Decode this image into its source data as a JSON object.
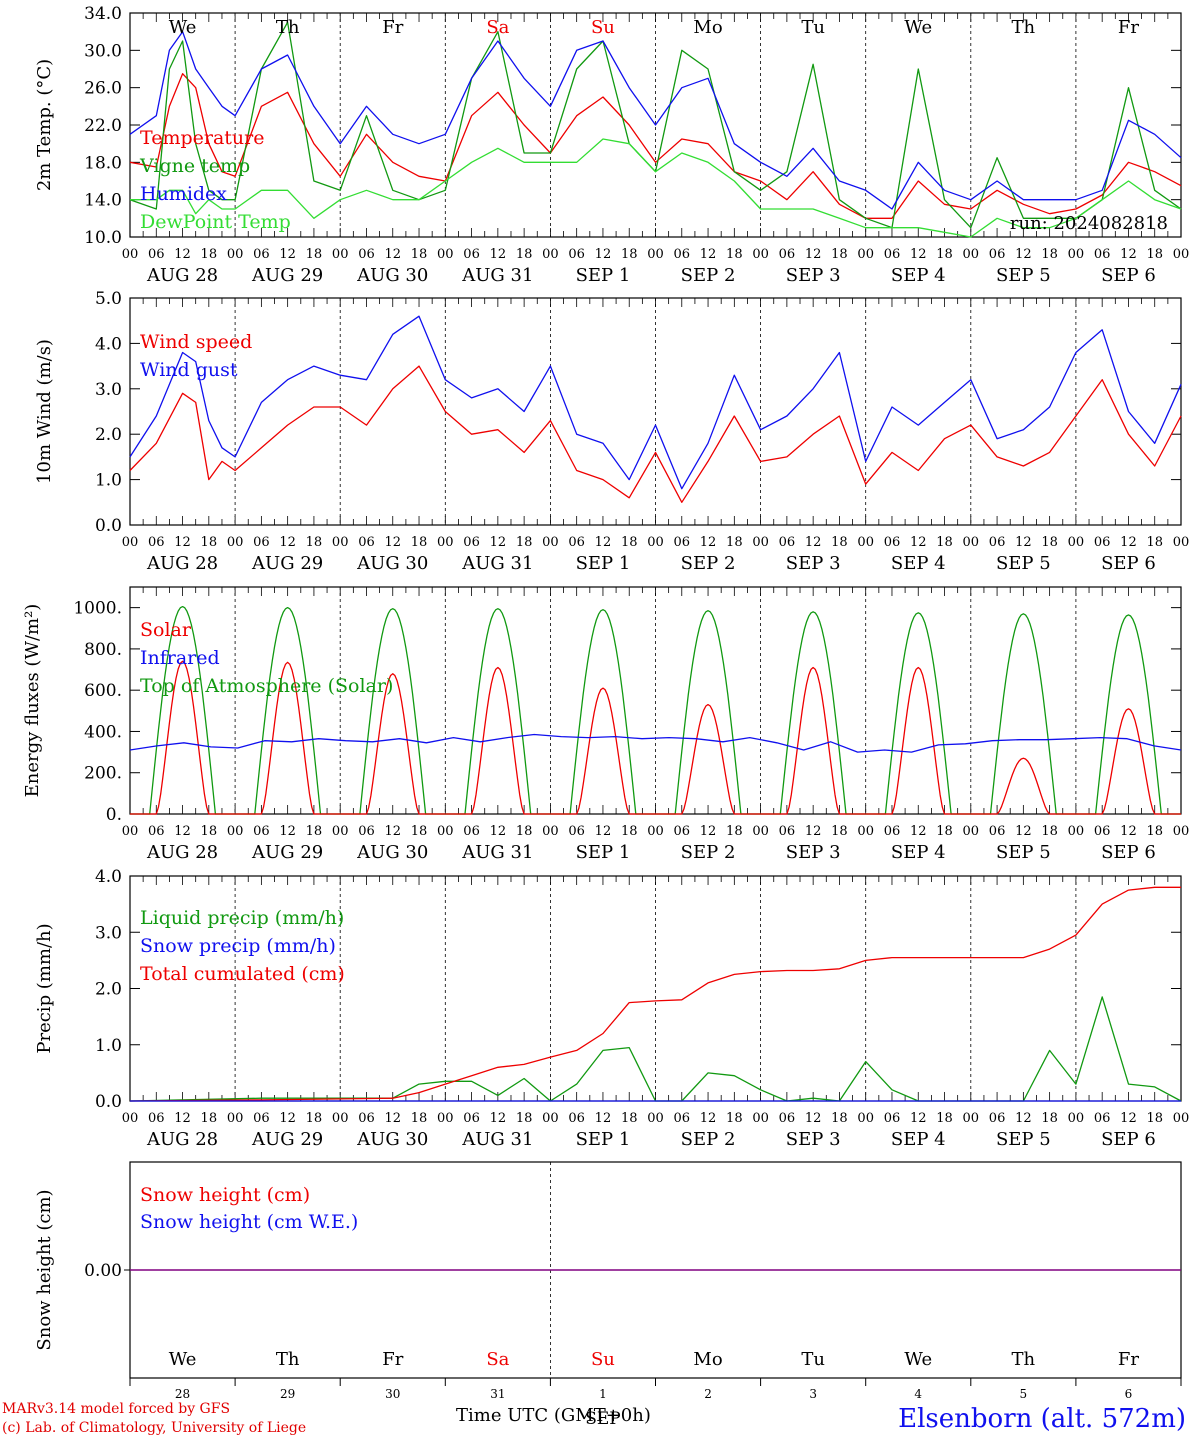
{
  "days": [
    {
      "dow": "We",
      "dom": "28",
      "date": "AUG 28",
      "weekend": false
    },
    {
      "dow": "Th",
      "dom": "29",
      "date": "AUG 29",
      "weekend": false
    },
    {
      "dow": "Fr",
      "dom": "30",
      "date": "AUG 30",
      "weekend": false
    },
    {
      "dow": "Sa",
      "dom": "31",
      "date": "AUG 31",
      "weekend": true
    },
    {
      "dow": "Su",
      "dom": "1",
      "date": "SEP  1",
      "weekend": true
    },
    {
      "dow": "Mo",
      "dom": "2",
      "date": "SEP  2",
      "weekend": false
    },
    {
      "dow": "Tu",
      "dom": "3",
      "date": "SEP  3",
      "weekend": false
    },
    {
      "dow": "We",
      "dom": "4",
      "date": "SEP  4",
      "weekend": false
    },
    {
      "dow": "Th",
      "dom": "5",
      "date": "SEP  5",
      "weekend": false
    },
    {
      "dow": "Fr",
      "dom": "6",
      "date": "SEP  6",
      "weekend": false
    }
  ],
  "hour_ticks": [
    "00",
    "06",
    "12",
    "18"
  ],
  "last_tick": "00",
  "bottom_month": "SEP",
  "footer": {
    "model": "MARv3.14 model forced by GFS",
    "credit": "(c) Lab. of Climatology, University of Liege",
    "station": "Elsenborn (alt. 572m)",
    "xtitle": "Time UTC (GMT+0h)"
  },
  "colors": {
    "red": "#ee0000",
    "green": "#119911",
    "blue": "#1010ee",
    "lightgreen": "#33dd33",
    "purple": "#800080"
  },
  "chart_data": [
    {
      "type": "line",
      "ylabel": "2m Temp. (°C)",
      "ylim": [
        10,
        34
      ],
      "yticks": [
        "10.0",
        "14.0",
        "18.0",
        "22.0",
        "26.0",
        "30.0",
        "34.0"
      ],
      "annotation": "run: 2024082818",
      "x_hours": [
        0,
        6,
        9,
        12,
        15,
        18,
        21,
        24,
        30,
        36,
        42,
        48,
        54,
        60,
        66,
        72,
        78,
        84,
        90,
        96,
        102,
        108,
        114,
        120,
        126,
        132,
        138,
        144,
        150,
        156,
        162,
        168,
        174,
        180,
        186,
        192,
        198,
        204,
        210,
        216,
        222,
        228,
        234,
        240
      ],
      "series": [
        {
          "name": "Temperature",
          "color": "red",
          "values": [
            18,
            17.5,
            24,
            27.5,
            26,
            20,
            17,
            16.5,
            24,
            25.5,
            20,
            16.5,
            21,
            18,
            16.5,
            16,
            23,
            25.5,
            22,
            19,
            23,
            25,
            22,
            18,
            20.5,
            20,
            17,
            16,
            14,
            17,
            13.5,
            12,
            12,
            16,
            13.5,
            13,
            15,
            13.5,
            12.5,
            13,
            14.5,
            18,
            17,
            15.5
          ]
        },
        {
          "name": "Vigne temp",
          "color": "green",
          "values": [
            14,
            13,
            28,
            31,
            20,
            15,
            14,
            14,
            28,
            33,
            16,
            15,
            23,
            15,
            14,
            15,
            27,
            32,
            19,
            19,
            28,
            31,
            20,
            17,
            30,
            28,
            17,
            15,
            17,
            28.5,
            14,
            12,
            11,
            28,
            14,
            11,
            18.5,
            12,
            12,
            12,
            14,
            26,
            15,
            13
          ]
        },
        {
          "name": "Humidex",
          "color": "blue",
          "values": [
            21,
            23,
            30,
            32,
            28,
            26,
            24,
            23,
            28,
            29.5,
            24,
            20,
            24,
            21,
            20,
            21,
            27,
            31,
            27,
            24,
            30,
            31,
            26,
            22,
            26,
            27,
            20,
            18,
            16.5,
            19.5,
            16,
            15,
            13,
            18,
            15,
            14,
            16,
            14,
            14,
            14,
            15,
            22.5,
            21,
            18.5
          ]
        },
        {
          "name": "DewPoint Temp",
          "color": "lightgreen",
          "values": [
            14,
            14,
            15,
            15,
            12.5,
            14,
            13,
            13,
            15,
            15,
            12,
            14,
            15,
            14,
            14,
            16,
            18,
            19.5,
            18,
            18,
            18,
            20.5,
            20,
            17,
            19,
            18,
            16,
            13,
            13,
            13,
            12,
            11,
            11,
            11,
            10.5,
            10,
            12,
            11,
            11,
            12,
            14,
            16,
            14,
            13
          ]
        }
      ]
    },
    {
      "type": "line",
      "ylabel": "10m Wind (m/s)",
      "ylim": [
        0,
        5
      ],
      "yticks": [
        "0.0",
        "1.0",
        "2.0",
        "3.0",
        "4.0",
        "5.0"
      ],
      "x_hours": [
        0,
        6,
        12,
        15,
        18,
        21,
        24,
        30,
        36,
        42,
        48,
        54,
        60,
        66,
        72,
        78,
        84,
        90,
        96,
        102,
        108,
        114,
        120,
        126,
        132,
        138,
        144,
        150,
        156,
        162,
        168,
        174,
        180,
        186,
        192,
        198,
        204,
        210,
        216,
        222,
        228,
        234,
        240
      ],
      "series": [
        {
          "name": "Wind speed",
          "color": "red",
          "values": [
            1.2,
            1.8,
            2.9,
            2.7,
            1,
            1.4,
            1.2,
            1.7,
            2.2,
            2.6,
            2.6,
            2.2,
            3.0,
            3.5,
            2.5,
            2.0,
            2.1,
            1.6,
            2.3,
            1.2,
            1.0,
            0.6,
            1.6,
            0.5,
            1.4,
            2.4,
            1.4,
            1.5,
            2.0,
            2.4,
            0.9,
            1.6,
            1.2,
            1.9,
            2.2,
            1.5,
            1.3,
            1.6,
            2.4,
            3.2,
            2.0,
            1.3,
            2.4
          ]
        },
        {
          "name": "Wind gust",
          "color": "blue",
          "values": [
            1.5,
            2.4,
            3.8,
            3.6,
            2.3,
            1.7,
            1.5,
            2.7,
            3.2,
            3.5,
            3.3,
            3.2,
            4.2,
            4.6,
            3.2,
            2.8,
            3.0,
            2.5,
            3.5,
            2.0,
            1.8,
            1.0,
            2.2,
            0.8,
            1.8,
            3.3,
            2.1,
            2.4,
            3.0,
            3.8,
            1.4,
            2.6,
            2.2,
            2.7,
            3.2,
            1.9,
            2.1,
            2.6,
            3.8,
            4.3,
            2.5,
            1.8,
            3.1
          ]
        }
      ]
    },
    {
      "type": "line",
      "ylabel": "Energy fluxes (W/m²)",
      "ylim": [
        0,
        1100
      ],
      "yticks": [
        "0.",
        "200.",
        "400.",
        "600.",
        "800.",
        "1000."
      ],
      "series": [
        {
          "name": "Solar",
          "color": "red",
          "peaks": [
            740,
            735,
            680,
            710,
            610,
            530,
            710,
            710,
            270,
            510
          ]
        },
        {
          "name": "Infrared",
          "color": "blue",
          "values": [
            310,
            330,
            345,
            325,
            320,
            355,
            350,
            365,
            355,
            350,
            365,
            345,
            370,
            350,
            370,
            385,
            375,
            370,
            375,
            365,
            370,
            365,
            350,
            370,
            345,
            310,
            350,
            300,
            310,
            300,
            335,
            340,
            355,
            360,
            360,
            365,
            370,
            365,
            330,
            310
          ]
        },
        {
          "name": "Top of Atmosphere (Solar)",
          "color": "green",
          "peaks": [
            1005,
            1000,
            995,
            995,
            990,
            985,
            980,
            975,
            970,
            965
          ]
        }
      ]
    },
    {
      "type": "line",
      "ylabel": "Precip (mm/h)",
      "ylim": [
        0,
        4
      ],
      "yticks": [
        "0.0",
        "1.0",
        "2.0",
        "3.0",
        "4.0"
      ],
      "x_hours": [
        0,
        30,
        60,
        66,
        72,
        78,
        84,
        90,
        96,
        102,
        108,
        114,
        120,
        126,
        132,
        138,
        144,
        150,
        156,
        162,
        168,
        174,
        180,
        186,
        192,
        198,
        204,
        210,
        216,
        222,
        228,
        234,
        240
      ],
      "series": [
        {
          "name": "Liquid precip (mm/h)",
          "color": "green",
          "values": [
            0,
            0.05,
            0.05,
            0.3,
            0.35,
            0.35,
            0.1,
            0.4,
            0,
            0.3,
            0.9,
            0.95,
            0,
            0,
            0.5,
            0.45,
            0.2,
            0,
            0.05,
            0,
            0.7,
            0.2,
            0,
            0,
            0,
            0,
            0,
            0.9,
            0.3,
            1.85,
            0.3,
            0.25,
            0
          ]
        },
        {
          "name": "Snow precip (mm/h)",
          "color": "blue",
          "values": [
            0,
            0,
            0,
            0,
            0,
            0,
            0,
            0,
            0,
            0,
            0,
            0,
            0,
            0,
            0,
            0,
            0,
            0,
            0,
            0,
            0,
            0,
            0,
            0,
            0,
            0,
            0,
            0,
            0,
            0,
            0,
            0,
            0
          ]
        },
        {
          "name": "Total cumulated (cm)",
          "color": "red",
          "values": [
            0,
            0.02,
            0.05,
            0.15,
            0.3,
            0.45,
            0.6,
            0.65,
            0.78,
            0.9,
            1.2,
            1.75,
            1.78,
            1.8,
            2.1,
            2.25,
            2.3,
            2.32,
            2.32,
            2.35,
            2.5,
            2.55,
            2.55,
            2.55,
            2.55,
            2.55,
            2.55,
            2.7,
            2.95,
            3.5,
            3.75,
            3.8,
            3.8
          ]
        }
      ]
    },
    {
      "type": "line",
      "ylabel": "Snow height (cm)",
      "yticks": [
        "0.00"
      ],
      "series": [
        {
          "name": "Snow height (cm)",
          "color": "red",
          "values": [
            0,
            0
          ]
        },
        {
          "name": "Snow height (cm W.E.)",
          "color": "blue",
          "values": [
            0,
            0
          ]
        }
      ]
    }
  ]
}
